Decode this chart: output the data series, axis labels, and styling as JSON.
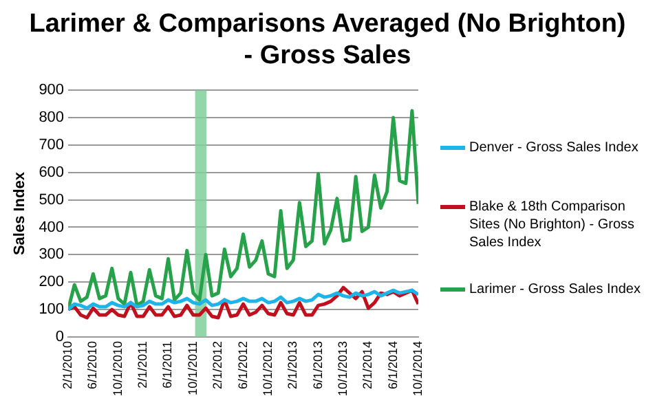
{
  "chart_data": {
    "type": "line",
    "title": "Larimer & Comparisons Averaged (No Brighton)  - Gross Sales",
    "ylabel": "Sales Index",
    "x": [
      "2010-02",
      "2010-03",
      "2010-04",
      "2010-05",
      "2010-06",
      "2010-07",
      "2010-08",
      "2010-09",
      "2010-10",
      "2010-11",
      "2010-12",
      "2011-01",
      "2011-02",
      "2011-03",
      "2011-04",
      "2011-05",
      "2011-06",
      "2011-07",
      "2011-08",
      "2011-09",
      "2011-10",
      "2011-11",
      "2011-12",
      "2012-01",
      "2012-02",
      "2012-03",
      "2012-04",
      "2012-05",
      "2012-06",
      "2012-07",
      "2012-08",
      "2012-09",
      "2012-10",
      "2012-11",
      "2012-12",
      "2013-01",
      "2013-02",
      "2013-03",
      "2013-04",
      "2013-05",
      "2013-06",
      "2013-07",
      "2013-08",
      "2013-09",
      "2013-10",
      "2013-11",
      "2013-12",
      "2014-01",
      "2014-02",
      "2014-03",
      "2014-04",
      "2014-05",
      "2014-06",
      "2014-07",
      "2014-08",
      "2014-09",
      "2014-10"
    ],
    "series": [
      {
        "name": "Denver - Gross Sales Index",
        "color": "#1fb4e8",
        "values": [
          100,
          120,
          115,
          105,
          120,
          110,
          110,
          125,
          115,
          110,
          125,
          110,
          115,
          130,
          120,
          120,
          135,
          125,
          130,
          140,
          125,
          120,
          135,
          115,
          120,
          135,
          125,
          130,
          140,
          130,
          130,
          140,
          125,
          130,
          145,
          125,
          130,
          140,
          130,
          135,
          155,
          145,
          150,
          160,
          150,
          145,
          160,
          150,
          155,
          165,
          150,
          160,
          170,
          160,
          165,
          170,
          155
        ]
      },
      {
        "name": "Blake & 18th Comparison Sites (No Brighton)  - Gross Sales Index",
        "color": "#c0101e",
        "values": [
          100,
          110,
          80,
          70,
          105,
          80,
          80,
          100,
          80,
          75,
          125,
          75,
          75,
          110,
          80,
          80,
          110,
          75,
          80,
          115,
          80,
          80,
          105,
          75,
          70,
          135,
          75,
          80,
          120,
          80,
          90,
          115,
          85,
          80,
          125,
          85,
          80,
          125,
          80,
          80,
          115,
          120,
          130,
          150,
          180,
          160,
          140,
          165,
          105,
          125,
          160,
          155,
          165,
          150,
          160,
          170,
          120
        ]
      },
      {
        "name": "Larimer  - Gross Sales Index",
        "color": "#27a24a",
        "values": [
          100,
          190,
          130,
          145,
          230,
          140,
          150,
          250,
          140,
          120,
          235,
          115,
          130,
          245,
          150,
          140,
          285,
          135,
          160,
          315,
          160,
          135,
          300,
          150,
          160,
          320,
          220,
          250,
          375,
          255,
          280,
          350,
          230,
          220,
          460,
          250,
          280,
          490,
          330,
          350,
          595,
          340,
          390,
          505,
          350,
          355,
          585,
          385,
          400,
          590,
          470,
          530,
          800,
          570,
          560,
          825,
          485
        ]
      }
    ],
    "xlim": [
      "2010-02",
      "2014-10"
    ],
    "xticks": [
      {
        "value": "2010-02",
        "label": "2/1/2010"
      },
      {
        "value": "2010-06",
        "label": "6/1/2010"
      },
      {
        "value": "2010-10",
        "label": "10/1/2010"
      },
      {
        "value": "2011-02",
        "label": "2/1/2011"
      },
      {
        "value": "2011-06",
        "label": "6/1/2011"
      },
      {
        "value": "2011-10",
        "label": "10/1/2011"
      },
      {
        "value": "2012-02",
        "label": "2/1/2012"
      },
      {
        "value": "2012-06",
        "label": "6/1/2012"
      },
      {
        "value": "2012-10",
        "label": "10/1/2012"
      },
      {
        "value": "2013-02",
        "label": "2/1/2013"
      },
      {
        "value": "2013-06",
        "label": "6/1/2013"
      },
      {
        "value": "2013-10",
        "label": "10/1/2013"
      },
      {
        "value": "2014-02",
        "label": "2/1/2014"
      },
      {
        "value": "2014-06",
        "label": "6/1/2014"
      },
      {
        "value": "2014-10",
        "label": "10/1/2014"
      }
    ],
    "ylim": [
      0,
      900
    ],
    "yticks": [
      0,
      100,
      200,
      300,
      400,
      500,
      600,
      700,
      800,
      900
    ],
    "bands": [
      {
        "axis": "x",
        "from": "2011-10-10",
        "to": "2011-12-05",
        "color": "#7fcf9a"
      }
    ],
    "grid": "y",
    "legend": "right",
    "marker": "none",
    "line_style": "solid"
  }
}
